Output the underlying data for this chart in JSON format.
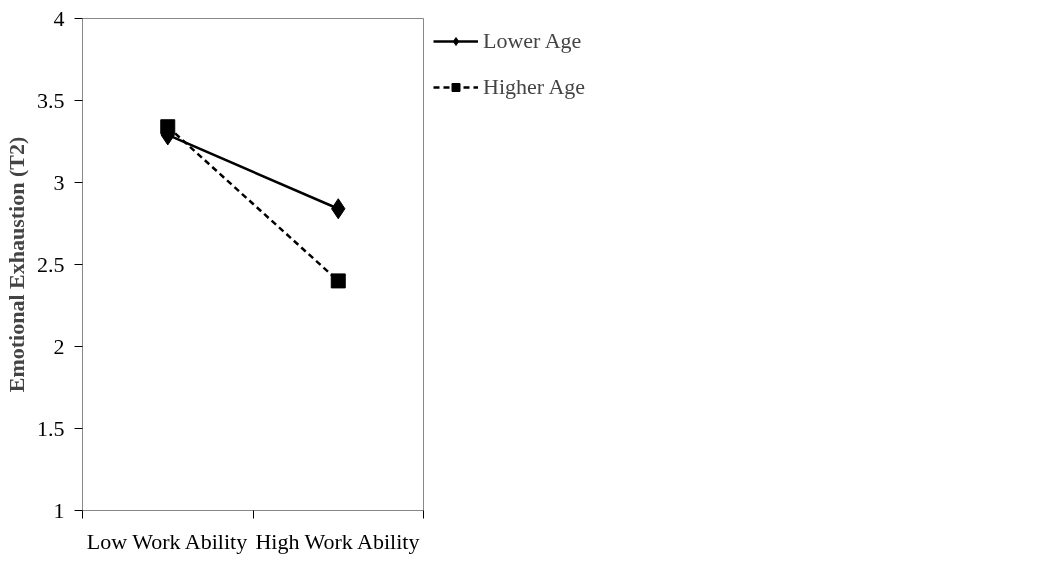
{
  "chart_data": {
    "type": "line",
    "ylabel": "Emotional Exhaustion (T2)",
    "categories": [
      "Low Work Ability",
      "High Work Ability"
    ],
    "series": [
      {
        "name": "Lower Age",
        "color": "#000000",
        "values": [
          3.29,
          2.84
        ],
        "marker": "diamond",
        "line_style": "solid"
      },
      {
        "name": "Higher Age",
        "color": "#000000",
        "values": [
          3.34,
          2.4
        ],
        "marker": "square",
        "line_style": "dashed"
      }
    ],
    "ylim": [
      1,
      4
    ],
    "yticks": [
      1,
      1.5,
      2,
      2.5,
      3,
      3.5,
      4
    ],
    "grid": false,
    "legend": "right"
  }
}
